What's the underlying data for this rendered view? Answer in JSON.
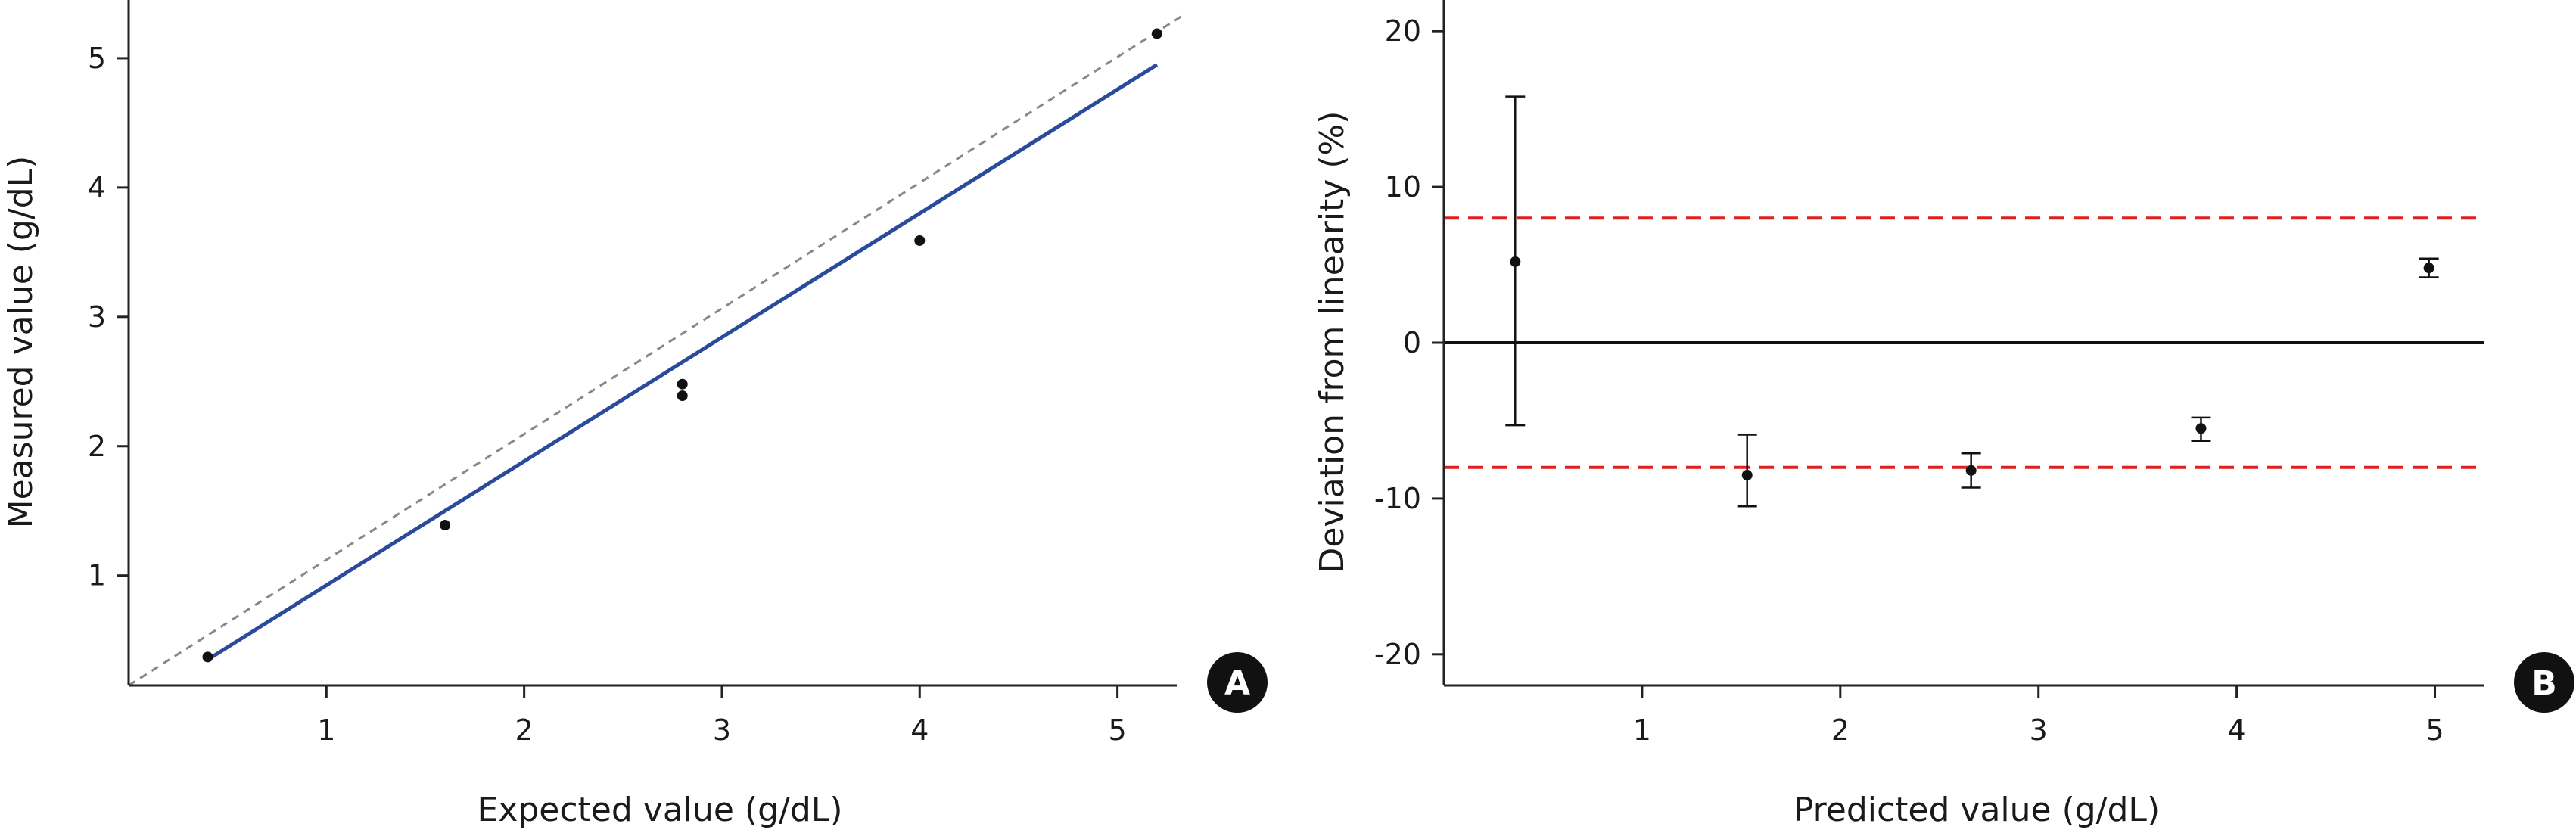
{
  "colors": {
    "fit_line": "#2a4b9b",
    "identity_line": "#888888",
    "limit_line": "#e02020",
    "points": "#111111",
    "axis": "#222222",
    "badge_bg": "#111111"
  },
  "chart_data": [
    {
      "panel_label": "A",
      "type": "scatter",
      "title": "",
      "xlabel": "Expected value (g/dL)",
      "ylabel": "Measured value (g/dL)",
      "xlim": [
        0,
        5.3
      ],
      "ylim": [
        0.15,
        5.45
      ],
      "xticks": [
        1,
        2,
        3,
        4,
        5
      ],
      "yticks": [
        1,
        2,
        3,
        4,
        5
      ],
      "grid": false,
      "points": [
        {
          "x": 0.4,
          "y": 0.37
        },
        {
          "x": 1.6,
          "y": 1.39
        },
        {
          "x": 2.8,
          "y": 2.39
        },
        {
          "x": 2.8,
          "y": 2.48
        },
        {
          "x": 4.0,
          "y": 3.59
        },
        {
          "x": 5.2,
          "y": 5.19
        }
      ],
      "fit_line": {
        "x": [
          0.4,
          5.2
        ],
        "y": [
          0.35,
          4.95
        ]
      },
      "identity_line": {
        "x": [
          0.0,
          5.33
        ],
        "y": [
          0.15,
          5.33
        ]
      }
    },
    {
      "panel_label": "B",
      "type": "scatter",
      "title": "",
      "xlabel": "Predicted value (g/dL)",
      "ylabel": "Deviation from linearity (%)",
      "xlim": [
        0,
        5.25
      ],
      "ylim": [
        -22,
        22
      ],
      "xticks": [
        1,
        2,
        3,
        4,
        5
      ],
      "yticks": [
        -20,
        -10,
        0,
        10,
        20
      ],
      "grid": false,
      "reference_line": 0,
      "limit_lines": [
        8,
        -8
      ],
      "points": [
        {
          "x": 0.36,
          "y": 5.2,
          "err_low": -5.3,
          "err_high": 15.8
        },
        {
          "x": 1.53,
          "y": -8.5,
          "err_low": -10.5,
          "err_high": -5.9
        },
        {
          "x": 2.66,
          "y": -8.2,
          "err_low": -9.3,
          "err_high": -7.1
        },
        {
          "x": 3.82,
          "y": -5.5,
          "err_low": -6.3,
          "err_high": -4.8
        },
        {
          "x": 4.97,
          "y": 4.8,
          "err_low": 4.2,
          "err_high": 5.4
        }
      ]
    }
  ]
}
